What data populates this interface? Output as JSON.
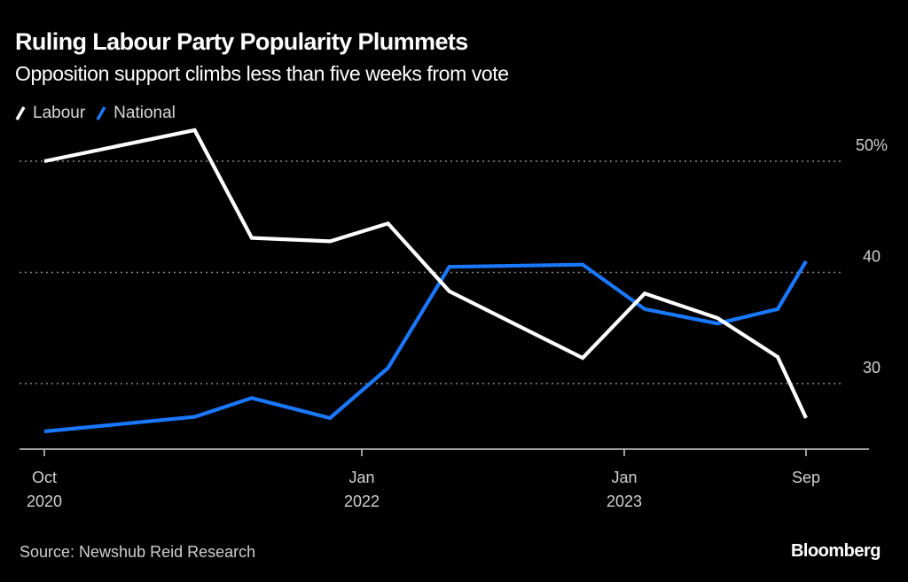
{
  "header": {
    "title": "Ruling Labour Party Popularity Plummets",
    "subtitle": "Opposition support climbs less than five weeks from vote"
  },
  "footer": {
    "source": "Source: Newshub Reid Research",
    "brand": "Bloomberg"
  },
  "chart_data": {
    "type": "line",
    "title": "Ruling Labour Party Popularity Plummets",
    "subtitle": "Opposition support climbs less than five weeks from vote",
    "xlabel": "",
    "ylabel": "",
    "x_unit": "months since Oct 2020",
    "x": [
      0,
      7.1,
      9.8,
      13.5,
      16.2,
      19.0,
      25.1,
      27.9,
      31.1,
      33.75,
      35
    ],
    "x_dates_approx": [
      "Oct 2020",
      "May 2021",
      "Jul 2021",
      "Nov 2021",
      "Feb 2022",
      "May 2022",
      "Nov 2022",
      "Feb 2023",
      "May 2023",
      "Aug 2023",
      "Sep 2023"
    ],
    "series": [
      {
        "name": "Labour",
        "color": "#ffffff",
        "values": [
          50.0,
          52.8,
          43.1,
          42.8,
          44.4,
          38.3,
          32.3,
          38.1,
          35.9,
          32.4,
          26.9
        ]
      },
      {
        "name": "National",
        "color": "#1a78ff",
        "values": [
          25.7,
          27.0,
          28.7,
          26.9,
          31.4,
          40.5,
          40.7,
          36.7,
          35.4,
          36.7,
          41.0
        ]
      }
    ],
    "ylim": [
      24,
      56
    ],
    "xlim": [
      -1.2,
      37.8
    ],
    "y_ticks": [
      {
        "value": 50,
        "label": "50%"
      },
      {
        "value": 40,
        "label": "40"
      },
      {
        "value": 30,
        "label": "30"
      }
    ],
    "x_ticks": [
      {
        "value": 0,
        "line1": "Oct",
        "line2": "2020"
      },
      {
        "value": 15,
        "line1": "Jan",
        "line2": "2022"
      },
      {
        "value": 27,
        "line1": "Jan",
        "line2": "2023"
      },
      {
        "value": 35,
        "line1": "Sep",
        "line2": ""
      }
    ],
    "grid": true,
    "grid_style": "dotted",
    "y_axis_side": "right",
    "legend_position": "top-left",
    "background": "#000000"
  }
}
